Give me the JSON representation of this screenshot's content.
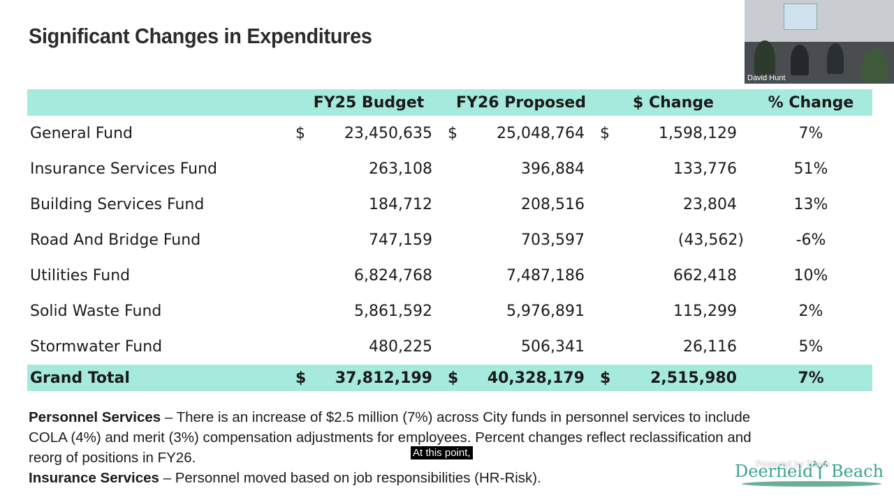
{
  "slide": {
    "title": "Significant Changes in Expenditures"
  },
  "table": {
    "headers": [
      "",
      "FY25 Budget",
      "FY26 Proposed",
      "$ Change",
      "% Change"
    ],
    "currency_symbol": "$",
    "rows": [
      {
        "label": "General Fund",
        "fy25": "23,450,635",
        "fy26": "25,048,764",
        "change": "1,598,129",
        "pct": "7%",
        "show_dollar": true
      },
      {
        "label": "Insurance Services Fund",
        "fy25": "263,108",
        "fy26": "396,884",
        "change": "133,776",
        "pct": "51%",
        "show_dollar": false
      },
      {
        "label": "Building Services Fund",
        "fy25": "184,712",
        "fy26": "208,516",
        "change": "23,804",
        "pct": "13%",
        "show_dollar": false
      },
      {
        "label": "Road And Bridge Fund",
        "fy25": "747,159",
        "fy26": "703,597",
        "change": "(43,562)",
        "pct": "-6%",
        "show_dollar": false
      },
      {
        "label": "Utilities Fund",
        "fy25": "6,824,768",
        "fy26": "7,487,186",
        "change": "662,418",
        "pct": "10%",
        "show_dollar": false
      },
      {
        "label": "Solid Waste Fund",
        "fy25": "5,861,592",
        "fy26": "5,976,891",
        "change": "115,299",
        "pct": "2%",
        "show_dollar": false
      },
      {
        "label": "Stormwater Fund",
        "fy25": "480,225",
        "fy26": "506,341",
        "change": "26,116",
        "pct": "5%",
        "show_dollar": false
      }
    ],
    "total": {
      "label": "Grand Total",
      "fy25": "37,812,199",
      "fy26": "40,328,179",
      "change": "2,515,980",
      "pct": "7%"
    }
  },
  "notes": {
    "p1_heading": "Personnel Services",
    "p1_text": " – There is an increase of $2.5 million (7%) across City funds in personnel services to include COLA (4%) and merit (3%) compensation adjustments for employees.  Percent changes reflect reclassification and reorg of positions in FY26.",
    "p2_heading": "Insurance Services",
    "p2_text": " – Personnel moved based on job responsibilities (HR-Risk)."
  },
  "caption": "At this point,",
  "video": {
    "participant_name": "David Hunt"
  },
  "logo": {
    "word1": "Deerfield",
    "word2": "Beach",
    "powered_by": "Powered by Zoom"
  },
  "colors": {
    "header_bg": "#a6e9dd",
    "total_bg": "#a6e9dd",
    "logo_green": "#3aa38f"
  }
}
